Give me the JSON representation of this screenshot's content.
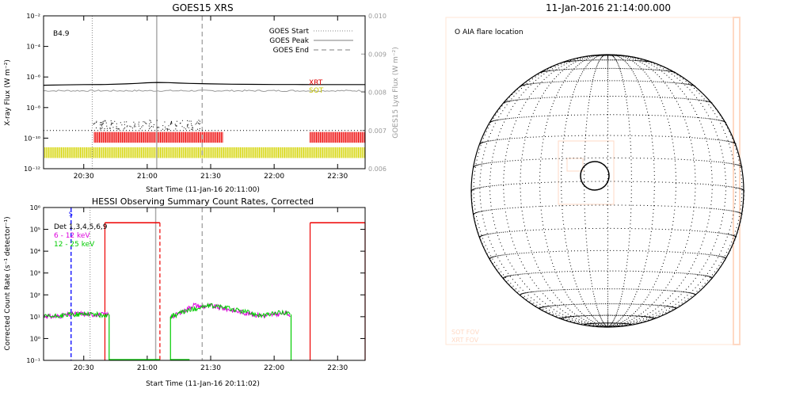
{
  "chart_data": [
    {
      "id": "goes",
      "type": "line",
      "title": "GOES15 XRS",
      "xlabel": "Start Time (11-Jan-16 20:11:00)",
      "ylabel_left": "X-ray Flux (W m⁻²)",
      "ylabel_right": "GOES15 Lyα Flux (W m⁻²)",
      "annotation": "B4.9",
      "x_tick_labels": [
        "20:30",
        "21:00",
        "21:30",
        "22:00",
        "22:30"
      ],
      "x_tick_minutes": [
        30,
        60,
        90,
        120,
        150
      ],
      "xlim_minutes": [
        11,
        163
      ],
      "y_left_scale": "log",
      "y_left_ticks": [
        "10⁻¹²",
        "10⁻¹⁰",
        "10⁻⁸",
        "10⁻⁶",
        "10⁻⁴",
        "10⁻²"
      ],
      "y_left_exps": [
        -12,
        -10,
        -8,
        -6,
        -4,
        -2
      ],
      "ylim_left_exp": [
        -12,
        -2
      ],
      "y_right_ticks": [
        "0.006",
        "0.007",
        "0.008",
        "0.009",
        "0.010"
      ],
      "y_right_values": [
        0.006,
        0.007,
        0.008,
        0.009,
        0.01
      ],
      "ylim_right": [
        0.006,
        0.01
      ],
      "legend": [
        {
          "label": "GOES Start",
          "style": "dotted",
          "color": "#888888"
        },
        {
          "label": "GOES Peak",
          "style": "solid",
          "color": "#aaaaaa"
        },
        {
          "label": "GOES End",
          "style": "dashed",
          "color": "#aaaaaa"
        }
      ],
      "vlines_minutes": {
        "start": 34,
        "peak": 64.5,
        "end": 86
      },
      "series_long_channel": {
        "color": "#000000",
        "x_min": [
          11,
          20,
          30,
          40,
          50,
          55,
          60,
          65,
          70,
          75,
          80,
          90,
          100,
          110,
          120,
          130,
          140,
          150,
          163
        ],
        "log_flux": [
          -6.54,
          -6.52,
          -6.5,
          -6.49,
          -6.45,
          -6.42,
          -6.38,
          -6.36,
          -6.37,
          -6.4,
          -6.42,
          -6.45,
          -6.47,
          -6.48,
          -6.49,
          -6.49,
          -6.5,
          -6.5,
          -6.5
        ]
      },
      "series_lyman_alpha": {
        "color": "#999999",
        "value_right": 0.00804
      },
      "series_short_channel_points": {
        "color": "#000000",
        "x_range": [
          33,
          85
        ],
        "log_flux_range": [
          -9.4,
          -8.8
        ]
      },
      "labels_right": [
        {
          "text": "XRT",
          "color": "#dd0000"
        },
        {
          "text": "SOT",
          "color": "#c8c800"
        }
      ],
      "xrt_intervals_minutes": [
        [
          35,
          96
        ],
        [
          137,
          163
        ]
      ],
      "xrt_color": "#ee0000",
      "sot_intervals_minutes": [
        [
          11,
          163
        ]
      ],
      "sot_color": "#d4d400"
    },
    {
      "id": "hessi",
      "type": "line",
      "title": "HESSI Observing Summary Count Rates, Corrected",
      "xlabel": "Start Time (11-Jan-16 20:11:02)",
      "ylabel": "Corrected Count Rate (s⁻¹ detector⁻¹)",
      "x_tick_labels": [
        "20:30",
        "21:00",
        "21:30",
        "22:00",
        "22:30"
      ],
      "x_tick_minutes": [
        30,
        60,
        90,
        120,
        150
      ],
      "xlim_minutes": [
        11,
        163
      ],
      "y_scale": "log",
      "y_ticks": [
        "10⁻¹",
        "10⁰",
        "10¹",
        "10²",
        "10³",
        "10⁴",
        "10⁵",
        "10⁶"
      ],
      "y_exps": [
        -1,
        0,
        1,
        2,
        3,
        4,
        5,
        6
      ],
      "ylim_exp": [
        -1,
        6
      ],
      "legend_text": "Det 1,3,4,5,6,9",
      "legend_series": [
        {
          "label": "6 - 12 keV",
          "color": "#dd00dd"
        },
        {
          "label": "12 - 25 keV",
          "color": "#00cc00"
        }
      ],
      "s_marker": {
        "text": "S",
        "x_min": 24,
        "color": "#2222ff"
      },
      "night_blocks_minutes": [
        [
          40,
          66
        ],
        [
          78,
          166
        ]
      ],
      "night_shading": "#eeeeee",
      "attenuator_red_intervals_minutes": [
        [
          40,
          66
        ],
        [
          137,
          163
        ]
      ],
      "attenuator_level_exp": 5.3,
      "red_vlines_minutes": [
        40,
        66,
        137,
        163
      ],
      "red_dashed_minute": 66,
      "gray_dashed_minute": 86,
      "gray_solid_minute": 64,
      "gray_dotted_minute": 33,
      "series_6_12": {
        "segments": [
          {
            "x_min": [
              11,
              15,
              20,
              24,
              28,
              32,
              36,
              40,
              42
            ],
            "log": [
              1.05,
              1.0,
              1.05,
              1.1,
              1.15,
              1.1,
              1.1,
              1.1,
              1.1
            ]
          },
          {
            "x_min": [
              71,
              74,
              78,
              82,
              86,
              90,
              95,
              100,
              105,
              110,
              115,
              120,
              125,
              128
            ],
            "log": [
              1.0,
              1.1,
              1.3,
              1.55,
              1.45,
              1.5,
              1.4,
              1.3,
              1.2,
              1.1,
              1.05,
              1.1,
              1.15,
              1.1
            ]
          }
        ]
      },
      "series_12_25": {
        "segments": [
          {
            "x_min": [
              11,
              15,
              20,
              24,
              28,
              32,
              36,
              40,
              42
            ],
            "log": [
              1.0,
              1.0,
              1.05,
              1.1,
              1.1,
              1.15,
              1.1,
              1.05,
              1.1
            ]
          },
          {
            "x_min": [
              71,
              74,
              78,
              82,
              86,
              90,
              95,
              100,
              105,
              110,
              115,
              120,
              125,
              128
            ],
            "log": [
              1.0,
              1.1,
              1.25,
              1.35,
              1.45,
              1.5,
              1.45,
              1.35,
              1.25,
              1.15,
              1.05,
              1.15,
              1.2,
              1.1
            ]
          }
        ],
        "drops": [
          {
            "from_min": 42,
            "log_to": -1.0
          },
          {
            "from_min": 128,
            "log_to": -1.0
          }
        ]
      }
    },
    {
      "id": "sun",
      "type": "map",
      "title": "11-Jan-2016 21:14:00.000",
      "legend": "O AIA flare location",
      "faint_labels": [
        "SOT FOV",
        "XRT FOV"
      ],
      "grid": "heliographic dotted",
      "flare_circle": "present",
      "fov_color": "#ffd9c4",
      "frame_color": "#ffe6d6"
    }
  ]
}
